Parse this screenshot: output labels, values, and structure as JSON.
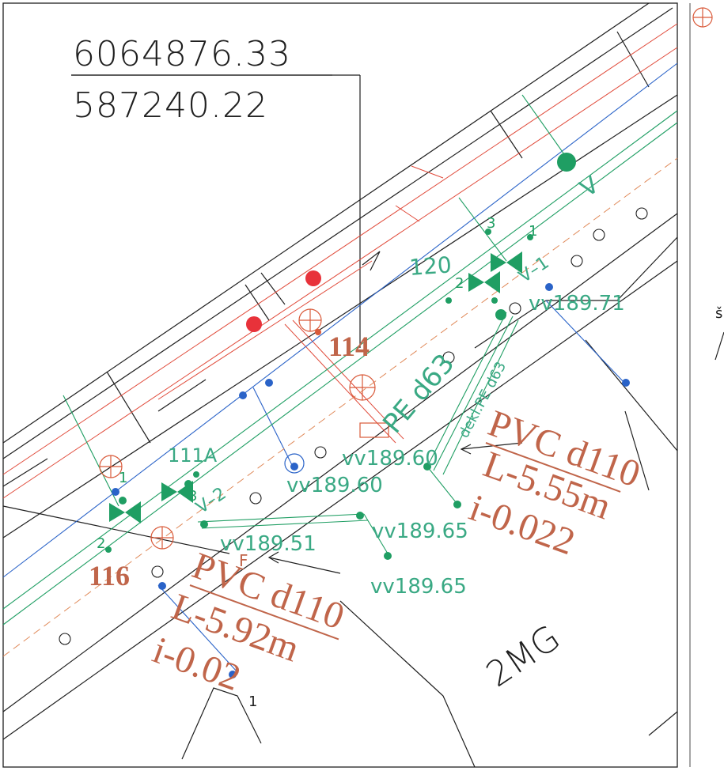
{
  "coordinates": {
    "northing": "6064876.33",
    "easting": "587240.22"
  },
  "points": {
    "p114": "114",
    "p116": "116",
    "lot": "2MG",
    "one": "1",
    "margin_letter": "š"
  },
  "levels": {
    "vv1": "vv189.71",
    "vv2": "vv189.60",
    "vv3": "vv189.60",
    "vv4": "vv189.65",
    "vv5": "vv189.51",
    "vv6": "vv189.65"
  },
  "labels": {
    "n120": "120",
    "n111a": "111A",
    "v1": "V–1",
    "v2": "V–2",
    "v": "V",
    "pe": "PE d63",
    "dekl": "dekl.PE d63",
    "f": "F"
  },
  "pipe_upper": {
    "material": "PVC d110",
    "length": "L-5.55m",
    "slope": "i-0.022"
  },
  "pipe_lower": {
    "material": "PVC d110",
    "length": "L-5.92m",
    "slope": "i-0.02"
  },
  "valve_numbers": [
    "1",
    "2",
    "3",
    "1",
    "2",
    "3"
  ],
  "colors": {
    "line": "#1f1f1f",
    "water": "#1f9e63",
    "sewer": "#e04a3a",
    "blue": "#2a63c8",
    "annotation": "#c0654a"
  }
}
